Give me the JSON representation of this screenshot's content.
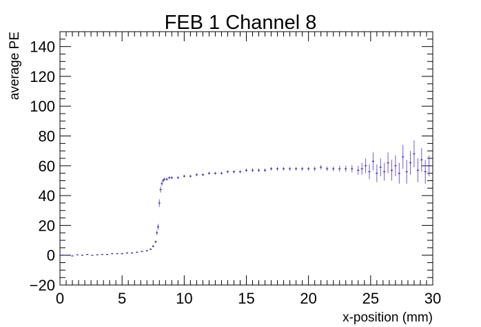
{
  "chart_data": {
    "type": "scatter",
    "title": "FEB 1 Channel 8",
    "xlabel": "x-position (mm)",
    "ylabel": "average PE",
    "xlim": [
      0,
      30
    ],
    "ylim": [
      -20,
      150
    ],
    "x_ticks": [
      "0",
      "5",
      "10",
      "15",
      "20",
      "25",
      "30"
    ],
    "y_ticks": [
      "−20",
      "0",
      "20",
      "40",
      "60",
      "80",
      "100",
      "120",
      "140"
    ],
    "grid": false,
    "legend": "none",
    "marker_color": "#2f1fa8",
    "error_bar_color": "#6a5acd",
    "series": [
      {
        "x": [
          0.2,
          0.6,
          1.0,
          1.4,
          1.8,
          2.2,
          2.6,
          3.0,
          3.4,
          3.8,
          4.2,
          4.6,
          5.0,
          5.4,
          5.8,
          6.2,
          6.6,
          7.0,
          7.3,
          7.5,
          7.7,
          7.8,
          7.9,
          8.0,
          8.1,
          8.2,
          8.3,
          8.4,
          8.6,
          8.8,
          9.0,
          9.5,
          10.0,
          10.5,
          11.0,
          11.5,
          12.0,
          12.5,
          13.0,
          13.5,
          14.0,
          14.5,
          15.0,
          15.5,
          16.0,
          16.5,
          17.0,
          17.5,
          18.0,
          18.5,
          19.0,
          19.5,
          20.0,
          20.5,
          21.0,
          21.5,
          22.0,
          22.5,
          23.0,
          23.5,
          24.0,
          24.3,
          24.6,
          24.9,
          25.2,
          25.5,
          25.8,
          26.1,
          26.4,
          26.7,
          27.0,
          27.3,
          27.6,
          27.9,
          28.2,
          28.5,
          28.8,
          29.1,
          29.4,
          29.7
        ],
        "y": [
          0.0,
          0.0,
          -0.5,
          0.3,
          0.0,
          0.5,
          0.0,
          0.3,
          0.5,
          0.5,
          1.0,
          1.0,
          1.0,
          1.5,
          1.5,
          2.0,
          2.5,
          3.0,
          4.0,
          6.0,
          9.0,
          15.0,
          19.0,
          35.0,
          44.0,
          48.0,
          50.0,
          51.0,
          51.0,
          52.0,
          52.0,
          52.0,
          53.0,
          53.0,
          54.0,
          54.0,
          55.0,
          55.0,
          55.0,
          56.0,
          56.0,
          56.0,
          57.0,
          57.0,
          57.0,
          57.0,
          58.0,
          58.0,
          58.0,
          58.0,
          58.0,
          58.0,
          58.0,
          58.0,
          59.0,
          58.0,
          58.0,
          58.0,
          58.0,
          58.0,
          57.0,
          58.0,
          60.0,
          56.0,
          63.0,
          55.0,
          59.0,
          56.0,
          62.0,
          57.0,
          60.0,
          55.0,
          66.0,
          56.0,
          62.0,
          68.0,
          57.0,
          64.0,
          56.0,
          60.0
        ],
        "err": [
          0.3,
          0.3,
          0.3,
          0.3,
          0.3,
          0.3,
          0.3,
          0.3,
          0.3,
          0.3,
          0.3,
          0.3,
          0.4,
          0.4,
          0.4,
          0.4,
          0.4,
          0.5,
          0.6,
          0.8,
          1.0,
          1.5,
          2.0,
          2.5,
          2.0,
          1.5,
          1.2,
          1.0,
          1.0,
          1.0,
          1.0,
          1.0,
          1.0,
          1.0,
          1.0,
          1.0,
          1.0,
          1.0,
          1.0,
          1.0,
          1.0,
          1.0,
          1.0,
          1.2,
          1.2,
          1.2,
          1.2,
          1.2,
          1.2,
          1.2,
          1.2,
          1.2,
          1.2,
          1.5,
          1.5,
          1.5,
          1.5,
          2.0,
          2.0,
          2.5,
          3.0,
          4.0,
          5.0,
          5.0,
          6.0,
          6.0,
          6.0,
          6.0,
          7.0,
          7.0,
          7.0,
          7.0,
          8.0,
          8.0,
          8.0,
          9.0,
          8.0,
          8.0,
          8.0,
          7.0
        ]
      }
    ]
  }
}
